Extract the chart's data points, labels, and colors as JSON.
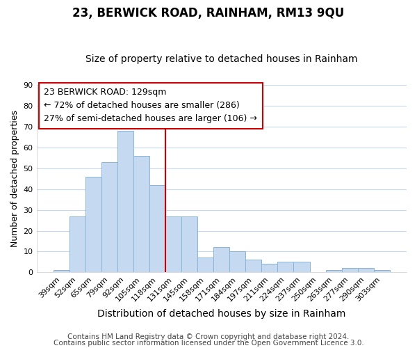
{
  "title": "23, BERWICK ROAD, RAINHAM, RM13 9QU",
  "subtitle": "Size of property relative to detached houses in Rainham",
  "xlabel": "Distribution of detached houses by size in Rainham",
  "ylabel": "Number of detached properties",
  "categories": [
    "39sqm",
    "52sqm",
    "65sqm",
    "79sqm",
    "92sqm",
    "105sqm",
    "118sqm",
    "131sqm",
    "145sqm",
    "158sqm",
    "171sqm",
    "184sqm",
    "197sqm",
    "211sqm",
    "224sqm",
    "237sqm",
    "250sqm",
    "263sqm",
    "277sqm",
    "290sqm",
    "303sqm"
  ],
  "values": [
    1,
    27,
    46,
    53,
    68,
    56,
    42,
    27,
    27,
    7,
    12,
    10,
    6,
    4,
    5,
    5,
    0,
    1,
    2,
    2,
    1
  ],
  "bar_color": "#c5d9f0",
  "bar_edge_color": "#8ab4d8",
  "background_color": "#ffffff",
  "fig_background_color": "#ffffff",
  "grid_color": "#c8d8ee",
  "vline_x_index": 7,
  "vline_color": "#cc0000",
  "annotation_title": "23 BERWICK ROAD: 129sqm",
  "annotation_line1": "← 72% of detached houses are smaller (286)",
  "annotation_line2": "27% of semi-detached houses are larger (106) →",
  "annotation_box_color": "#ffffff",
  "annotation_box_edge": "#cc0000",
  "ylim": [
    0,
    90
  ],
  "yticks": [
    0,
    10,
    20,
    30,
    40,
    50,
    60,
    70,
    80,
    90
  ],
  "footer1": "Contains HM Land Registry data © Crown copyright and database right 2024.",
  "footer2": "Contains public sector information licensed under the Open Government Licence 3.0.",
  "title_fontsize": 12,
  "subtitle_fontsize": 10,
  "xlabel_fontsize": 10,
  "ylabel_fontsize": 9,
  "tick_fontsize": 8,
  "annotation_fontsize": 9,
  "footer_fontsize": 7.5
}
